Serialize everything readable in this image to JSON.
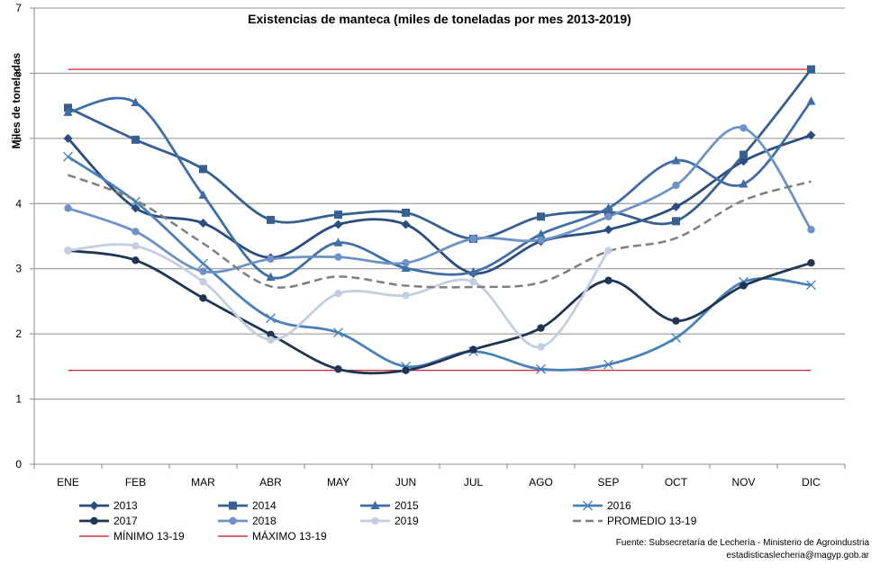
{
  "chart_data": {
    "type": "line",
    "title": "Existencias de manteca (miles de toneladas por mes 2013-2019)",
    "ylabel": "Miles de toneladas",
    "xlabel": "",
    "ylim": [
      0,
      7
    ],
    "yticks": [
      "0",
      "1",
      "2",
      "3",
      "4",
      "5",
      "6",
      "7"
    ],
    "categories": [
      "ENE",
      "FEB",
      "MAR",
      "ABR",
      "MAY",
      "JUN",
      "JUL",
      "AGO",
      "SEP",
      "OCT",
      "NOV",
      "DIC"
    ],
    "grid": "horizontal",
    "legend_position": "bottom",
    "series": [
      {
        "name": "2013",
        "color": "#2a4d7e",
        "marker": "diamond",
        "values": [
          5.0,
          3.93,
          3.7,
          3.17,
          3.68,
          3.68,
          2.93,
          3.42,
          3.6,
          3.95,
          4.65,
          5.05
        ]
      },
      {
        "name": "2014",
        "color": "#36608f",
        "marker": "square",
        "values": [
          5.47,
          4.98,
          4.53,
          3.75,
          3.83,
          3.86,
          3.46,
          3.8,
          3.87,
          3.73,
          4.75,
          6.06
        ]
      },
      {
        "name": "2015",
        "color": "#3f6ea6",
        "marker": "triangle",
        "values": [
          5.4,
          5.55,
          4.13,
          2.87,
          3.4,
          3.01,
          2.95,
          3.53,
          3.93,
          4.66,
          4.3,
          5.57
        ]
      },
      {
        "name": "2016",
        "color": "#4a80b8",
        "marker": "x",
        "values": [
          4.72,
          4.03,
          3.08,
          2.24,
          2.02,
          1.5,
          1.73,
          1.46,
          1.53,
          1.94,
          2.8,
          2.75
        ]
      },
      {
        "name": "2017",
        "color": "#1f3552",
        "marker": "circle",
        "values": [
          3.28,
          3.13,
          2.55,
          1.99,
          1.46,
          1.44,
          1.76,
          2.09,
          2.82,
          2.2,
          2.74,
          3.09
        ]
      },
      {
        "name": "2018",
        "color": "#6d93c6",
        "marker": "circle",
        "values": [
          3.93,
          3.57,
          2.96,
          3.15,
          3.18,
          3.09,
          3.46,
          3.44,
          3.8,
          4.28,
          5.16,
          3.6
        ]
      },
      {
        "name": "2019",
        "color": "#c3cede",
        "marker": "circle",
        "values": [
          3.28,
          3.35,
          2.8,
          1.91,
          2.62,
          2.59,
          2.8,
          1.8,
          3.28,
          null,
          null,
          null
        ]
      },
      {
        "name": "PROMEDIO 13-19",
        "color": "#7f7f7f",
        "marker": "none",
        "dashed": true,
        "values": [
          4.44,
          4.05,
          3.39,
          2.73,
          2.88,
          2.74,
          2.72,
          2.79,
          3.27,
          3.47,
          4.05,
          4.34
        ]
      },
      {
        "name": "MÍNIMO 13-19",
        "color": "#c0101e",
        "marker": "none",
        "values": [
          1.44,
          1.44,
          1.44,
          1.44,
          1.44,
          1.44,
          1.44,
          1.44,
          1.44,
          1.44,
          1.44,
          1.44
        ]
      },
      {
        "name": "MÁXIMO 13-19",
        "color": "#c0101e",
        "marker": "none",
        "values": [
          6.06,
          6.06,
          6.06,
          6.06,
          6.06,
          6.06,
          6.06,
          6.06,
          6.06,
          6.06,
          6.06,
          6.06
        ]
      }
    ]
  },
  "source": {
    "line1": "Fuente: Subsecretaría de Lechería - Ministerio de Agroindustria",
    "line2": "estadisticaslecheria@magyp.gob.ar"
  }
}
